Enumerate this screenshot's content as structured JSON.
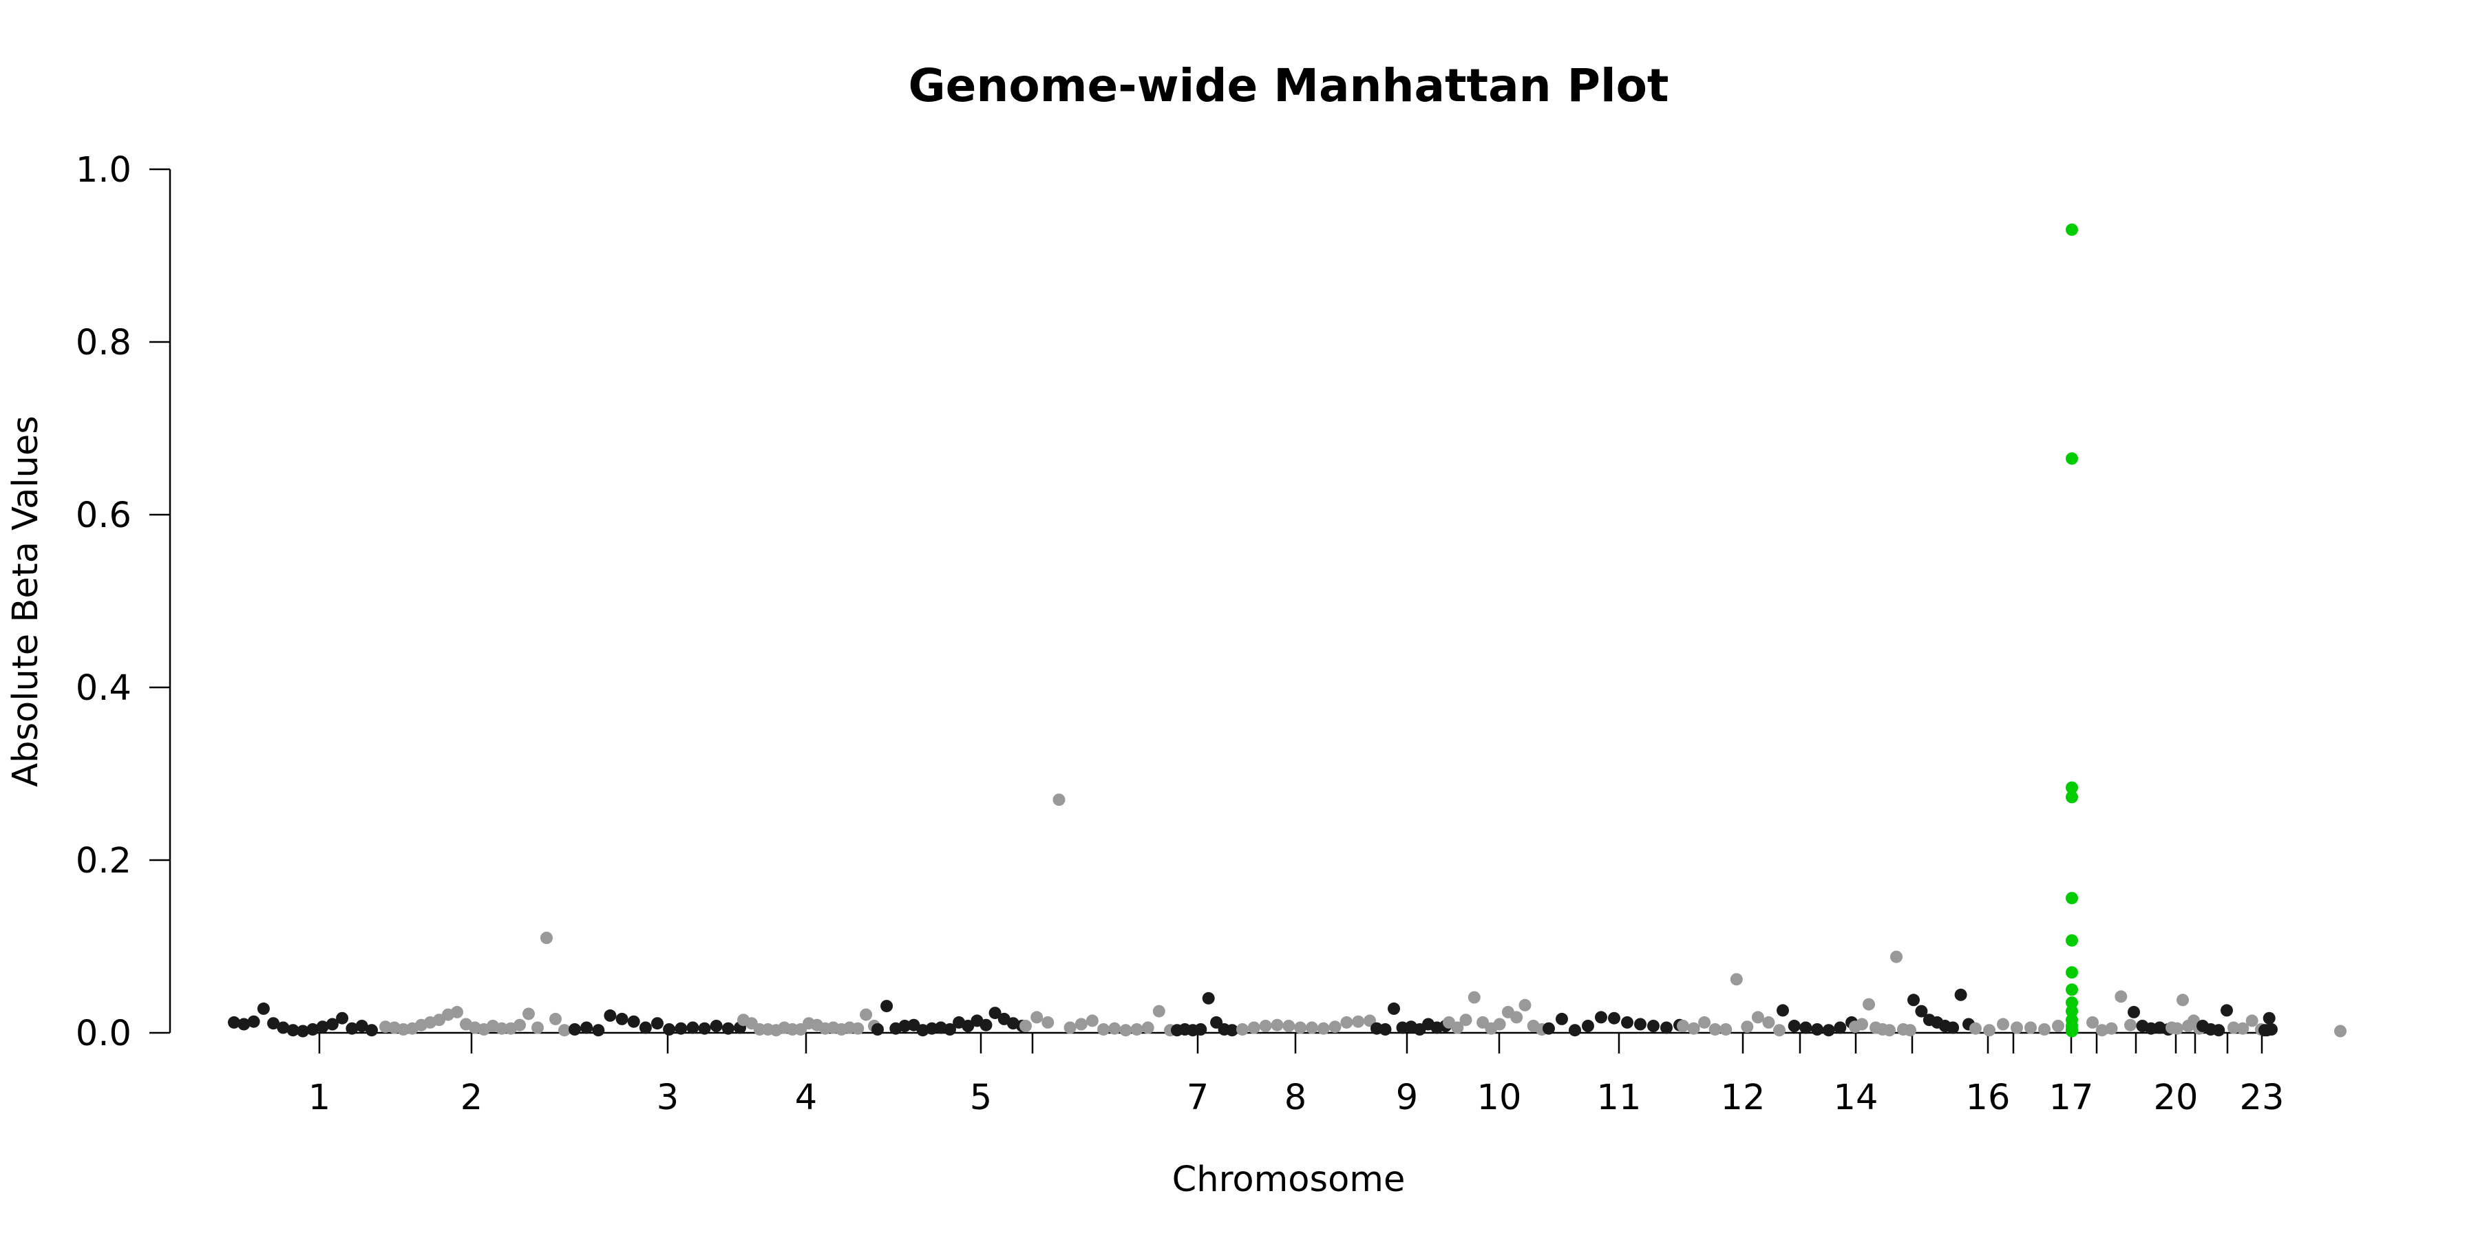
{
  "chart_data": {
    "type": "scatter",
    "title": "Genome-wide Manhattan Plot",
    "xlabel": "Chromosome",
    "ylabel": "Absolute Beta Values",
    "ylim": [
      0,
      1.0
    ],
    "yticks": [
      "0.0",
      "0.2",
      "0.4",
      "0.6",
      "0.8",
      "1.0"
    ],
    "xticks": [
      "1",
      "2",
      "3",
      "4",
      "5",
      "7",
      "8",
      "9",
      "10",
      "11",
      "12",
      "14",
      "16",
      "17",
      "20",
      "23"
    ],
    "grid": false,
    "legend": "none",
    "colors": {
      "odd_chromosomes": "#1a1a1a",
      "even_chromosomes": "#999999",
      "highlight": "#00cc00"
    },
    "highlighted_chromosome": "17",
    "series": [
      {
        "chromosome": "1",
        "points": [
          0.012,
          0.01,
          0.013,
          0.028,
          0.011,
          0.006,
          0.003,
          0.002,
          0.004,
          0.007,
          0.01,
          0.017,
          0.005,
          0.008,
          0.003
        ]
      },
      {
        "chromosome": "2",
        "points": [
          0.007,
          0.006,
          0.004,
          0.005,
          0.009,
          0.012,
          0.015,
          0.021,
          0.024,
          0.01,
          0.006,
          0.004,
          0.008,
          0.005,
          0.005,
          0.009,
          0.022,
          0.006,
          0.11,
          0.016,
          0.003
        ]
      },
      {
        "chromosome": "3",
        "points": [
          0.004,
          0.006,
          0.003,
          0.02,
          0.016,
          0.013,
          0.006,
          0.011,
          0.004,
          0.005,
          0.006,
          0.005,
          0.008,
          0.005,
          0.006
        ]
      },
      {
        "chromosome": "4",
        "points": [
          0.015,
          0.011,
          0.004,
          0.004,
          0.003,
          0.006,
          0.004,
          0.004,
          0.011,
          0.009,
          0.005,
          0.006,
          0.004,
          0.006,
          0.005,
          0.021,
          0.008
        ]
      },
      {
        "chromosome": "5",
        "points": [
          0.004,
          0.031,
          0.005,
          0.008,
          0.009,
          0.003,
          0.005,
          0.006,
          0.004,
          0.012,
          0.008,
          0.014,
          0.009,
          0.023,
          0.016,
          0.011,
          0.008
        ]
      },
      {
        "chromosome": "6",
        "points": [
          0.008,
          0.018,
          0.012,
          0.27,
          0.006,
          0.01,
          0.014,
          0.004,
          0.005,
          0.003,
          0.004,
          0.006,
          0.025,
          0.003
        ]
      },
      {
        "chromosome": "7",
        "points": [
          0.003,
          0.004,
          0.003,
          0.004,
          0.04,
          0.012,
          0.004,
          0.003
        ]
      },
      {
        "chromosome": "8",
        "points": [
          0.004,
          0.006,
          0.008,
          0.009,
          0.008,
          0.006,
          0.006,
          0.005,
          0.007,
          0.012,
          0.013,
          0.014
        ]
      },
      {
        "chromosome": "9",
        "points": [
          0.005,
          0.004,
          0.028,
          0.006,
          0.007,
          0.004,
          0.01,
          0.006,
          0.008
        ]
      },
      {
        "chromosome": "10",
        "points": [
          0.012,
          0.006,
          0.015,
          0.041,
          0.012,
          0.005,
          0.01,
          0.024,
          0.018,
          0.032,
          0.008,
          0.004
        ]
      },
      {
        "chromosome": "11",
        "points": [
          0.005,
          0.016,
          0.003,
          0.008,
          0.018,
          0.017,
          0.012,
          0.01,
          0.008,
          0.006,
          0.009
        ]
      },
      {
        "chromosome": "12",
        "points": [
          0.008,
          0.005,
          0.012,
          0.004,
          0.004,
          0.062,
          0.007,
          0.018,
          0.012,
          0.003
        ]
      },
      {
        "chromosome": "13",
        "points": [
          0.026,
          0.008,
          0.006,
          0.004,
          0.003,
          0.006,
          0.012
        ]
      },
      {
        "chromosome": "14",
        "points": [
          0.007,
          0.01,
          0.033,
          0.006,
          0.004,
          0.003,
          0.088,
          0.004,
          0.003
        ]
      },
      {
        "chromosome": "15",
        "points": [
          0.038,
          0.025,
          0.015,
          0.012,
          0.008,
          0.006,
          0.044,
          0.01
        ]
      },
      {
        "chromosome": "16",
        "points": [
          0.005,
          0.003,
          0.01,
          0.006,
          0.006,
          0.004,
          0.008
        ]
      },
      {
        "chromosome": "17",
        "points": [
          0.93,
          0.665,
          0.284,
          0.273,
          0.156,
          0.107,
          0.07,
          0.05,
          0.035,
          0.025,
          0.015,
          0.008,
          0.004,
          0.002
        ]
      },
      {
        "chromosome": "18",
        "points": [
          0.012,
          0.003,
          0.005,
          0.042,
          0.009
        ]
      },
      {
        "chromosome": "19",
        "points": [
          0.024,
          0.008,
          0.005,
          0.006,
          0.004
        ]
      },
      {
        "chromosome": "20",
        "points": [
          0.006,
          0.005,
          0.038,
          0.008,
          0.014,
          0.005
        ]
      },
      {
        "chromosome": "21",
        "points": [
          0.008,
          0.004,
          0.003,
          0.026
        ]
      },
      {
        "chromosome": "22",
        "points": [
          0.006,
          0.005,
          0.014,
          0.004
        ]
      },
      {
        "chromosome": "23",
        "points": [
          0.003,
          0.003,
          0.017,
          0.004
        ]
      },
      {
        "chromosome": "24",
        "points": [
          0.002
        ]
      }
    ]
  }
}
